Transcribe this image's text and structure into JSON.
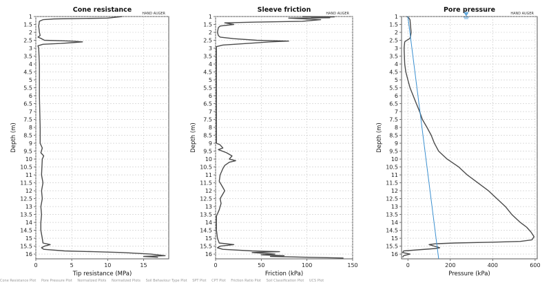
{
  "chart_data": [
    {
      "type": "line",
      "title": "Cone resistance",
      "xlabel": "Tip resistance (MPa)",
      "ylabel": "Depth (m)",
      "xlim": [
        0,
        18.5
      ],
      "xticks": [
        "0",
        "5",
        "10",
        "15"
      ],
      "ylim": [
        1,
        16.3
      ],
      "annotation": "HAND AUGER",
      "series": [
        {
          "color": "#4a4a4a",
          "points": [
            [
              12,
              1
            ],
            [
              10,
              1.1
            ],
            [
              2.5,
              1.15
            ],
            [
              1,
              1.2
            ],
            [
              0.5,
              1.3
            ],
            [
              0.4,
              1.6
            ],
            [
              0.5,
              2
            ],
            [
              0.6,
              2.2
            ],
            [
              0.3,
              2.3
            ],
            [
              0.8,
              2.4
            ],
            [
              1.2,
              2.5
            ],
            [
              5,
              2.55
            ],
            [
              6.5,
              2.6
            ],
            [
              5,
              2.65
            ],
            [
              3.5,
              2.7
            ],
            [
              1,
              2.75
            ],
            [
              0.3,
              2.85
            ],
            [
              0.4,
              3
            ],
            [
              0.5,
              4
            ],
            [
              0.5,
              6
            ],
            [
              0.6,
              8
            ],
            [
              0.6,
              9
            ],
            [
              0.9,
              9.3
            ],
            [
              0.7,
              9.6
            ],
            [
              1.1,
              9.8
            ],
            [
              0.9,
              10
            ],
            [
              0.8,
              11
            ],
            [
              1,
              11.5
            ],
            [
              0.8,
              12
            ],
            [
              0.9,
              12.5
            ],
            [
              0.7,
              13
            ],
            [
              0.8,
              13.5
            ],
            [
              0.7,
              14
            ],
            [
              0.7,
              14.5
            ],
            [
              0.9,
              15
            ],
            [
              1,
              15.3
            ],
            [
              2,
              15.4
            ],
            [
              1.2,
              15.5
            ],
            [
              0.8,
              15.6
            ],
            [
              1.1,
              15.7
            ],
            [
              4,
              15.8
            ],
            [
              8,
              15.85
            ],
            [
              12,
              15.9
            ],
            [
              16,
              16
            ],
            [
              18,
              16.1
            ],
            [
              15,
              16.15
            ],
            [
              17,
              16.2
            ]
          ]
        }
      ]
    },
    {
      "type": "line",
      "title": "Sleeve friction",
      "xlabel": "Friction (kPa)",
      "ylabel": "Depth (m)",
      "xlim": [
        0,
        150
      ],
      "xticks": [
        "0",
        "50",
        "100",
        "150"
      ],
      "ylim": [
        1,
        16.3
      ],
      "annotation": "HAND AUGER",
      "series": [
        {
          "color": "#4a4a4a",
          "points": [
            [
              95,
              1
            ],
            [
              130,
              1.02
            ],
            [
              105,
              1.05
            ],
            [
              125,
              1.08
            ],
            [
              80,
              1.1
            ],
            [
              115,
              1.2
            ],
            [
              95,
              1.3
            ],
            [
              45,
              1.35
            ],
            [
              10,
              1.4
            ],
            [
              20,
              1.5
            ],
            [
              5,
              1.6
            ],
            [
              3,
              1.7
            ],
            [
              2,
              2
            ],
            [
              3,
              2.2
            ],
            [
              5,
              2.3
            ],
            [
              20,
              2.4
            ],
            [
              45,
              2.5
            ],
            [
              80,
              2.55
            ],
            [
              60,
              2.6
            ],
            [
              35,
              2.7
            ],
            [
              8,
              2.8
            ],
            [
              1,
              2.9
            ],
            [
              1,
              3
            ],
            [
              1,
              4
            ],
            [
              1,
              6
            ],
            [
              1,
              8
            ],
            [
              1,
              9
            ],
            [
              5,
              9.1
            ],
            [
              8,
              9.3
            ],
            [
              3,
              9.4
            ],
            [
              12,
              9.6
            ],
            [
              18,
              9.8
            ],
            [
              15,
              10
            ],
            [
              22,
              10.1
            ],
            [
              15,
              10.2
            ],
            [
              10,
              10.4
            ],
            [
              8,
              10.6
            ],
            [
              5,
              11
            ],
            [
              4,
              11.4
            ],
            [
              6,
              11.6
            ],
            [
              10,
              12
            ],
            [
              5,
              12.5
            ],
            [
              6,
              12.8
            ],
            [
              4,
              13.2
            ],
            [
              1,
              13.6
            ],
            [
              1,
              14
            ],
            [
              1,
              14.5
            ],
            [
              2,
              15
            ],
            [
              4,
              15.3
            ],
            [
              20,
              15.4
            ],
            [
              5,
              15.5
            ],
            [
              2,
              15.6
            ],
            [
              8,
              15.7
            ],
            [
              40,
              15.8
            ],
            [
              70,
              15.85
            ],
            [
              40,
              15.9
            ],
            [
              65,
              16
            ],
            [
              50,
              16.05
            ],
            [
              75,
              16.1
            ],
            [
              60,
              16.15
            ],
            [
              100,
              16.2
            ],
            [
              140,
              16.25
            ]
          ]
        }
      ]
    },
    {
      "type": "line",
      "title": "Pore pressure",
      "xlabel": "Pressure (kPa)",
      "ylabel": "Depth (m)",
      "xlim": [
        -30,
        610
      ],
      "xticks": [
        "0",
        "200",
        "400",
        "600"
      ],
      "ylim": [
        1,
        16.3
      ],
      "annotation": "HAND AUGER",
      "series": [
        {
          "color": "#4a4a4a",
          "points": [
            [
              -5,
              1
            ],
            [
              5,
              1.1
            ],
            [
              10,
              1.2
            ],
            [
              12,
              1.5
            ],
            [
              15,
              2
            ],
            [
              12,
              2.3
            ],
            [
              8,
              2.4
            ],
            [
              -5,
              2.5
            ],
            [
              -15,
              2.6
            ],
            [
              -18,
              3
            ],
            [
              -15,
              4
            ],
            [
              -10,
              4.5
            ],
            [
              0,
              5
            ],
            [
              10,
              5.5
            ],
            [
              25,
              6
            ],
            [
              40,
              6.5
            ],
            [
              55,
              7
            ],
            [
              68,
              7.5
            ],
            [
              90,
              8
            ],
            [
              110,
              8.5
            ],
            [
              125,
              9
            ],
            [
              145,
              9.5
            ],
            [
              185,
              10
            ],
            [
              240,
              10.5
            ],
            [
              280,
              11
            ],
            [
              330,
              11.5
            ],
            [
              380,
              12
            ],
            [
              420,
              12.5
            ],
            [
              460,
              13
            ],
            [
              490,
              13.5
            ],
            [
              530,
              14
            ],
            [
              560,
              14.3
            ],
            [
              580,
              14.6
            ],
            [
              595,
              14.9
            ],
            [
              585,
              15.1
            ],
            [
              530,
              15.2
            ],
            [
              400,
              15.25
            ],
            [
              220,
              15.3
            ],
            [
              130,
              15.35
            ],
            [
              100,
              15.4
            ],
            [
              150,
              15.6
            ],
            [
              130,
              15.65
            ],
            [
              -20,
              15.8
            ],
            [
              -25,
              15.9
            ],
            [
              10,
              16
            ],
            [
              -20,
              16.1
            ],
            [
              -25,
              16.2
            ]
          ]
        },
        {
          "color": "#3a8fd0",
          "points": [
            [
              0,
              1
            ],
            [
              145,
              16.3
            ]
          ]
        }
      ]
    }
  ],
  "footer_tabs": [
    "Cone Resistance Plot",
    "Pore Pressure Plot",
    "Normalized Plots",
    "Normalized Plots",
    "Soil Behaviour Type Plot",
    "SPT Plot",
    "CPT Plot",
    "Friction Ratio Plot",
    "Soil Classification Plot",
    "UCS Plot"
  ]
}
